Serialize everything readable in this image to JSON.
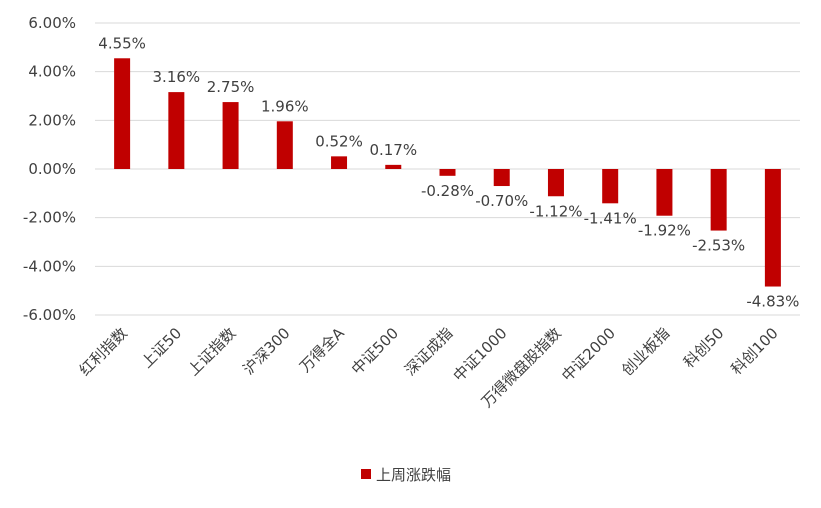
{
  "chart_data": {
    "type": "bar",
    "title": "",
    "xlabel": "",
    "ylabel": "",
    "ylim": [
      -6,
      6
    ],
    "ytick_step": 2,
    "ytick_labels": [
      "6.00%",
      "4.00%",
      "2.00%",
      "0.00%",
      "-2.00%",
      "-4.00%",
      "-6.00%"
    ],
    "grid": true,
    "legend_position": "bottom",
    "categories": [
      "红利指数",
      "上证50",
      "上证指数",
      "沪深300",
      "万得全A",
      "中证500",
      "深证成指",
      "中证1000",
      "万得微盘股指数",
      "中证2000",
      "创业板指",
      "科创50",
      "科创100"
    ],
    "series": [
      {
        "name": "上周涨跌幅",
        "color": "#C00000",
        "values": [
          4.55,
          3.16,
          2.75,
          1.96,
          0.52,
          0.17,
          -0.28,
          -0.7,
          -1.12,
          -1.41,
          -1.92,
          -2.53,
          -4.83
        ],
        "labels": [
          "4.55%",
          "3.16%",
          "2.75%",
          "1.96%",
          "0.52%",
          "0.17%",
          "-0.28%",
          "-0.70%",
          "-1.12%",
          "-1.41%",
          "-1.92%",
          "-2.53%",
          "-4.83%"
        ]
      }
    ]
  }
}
